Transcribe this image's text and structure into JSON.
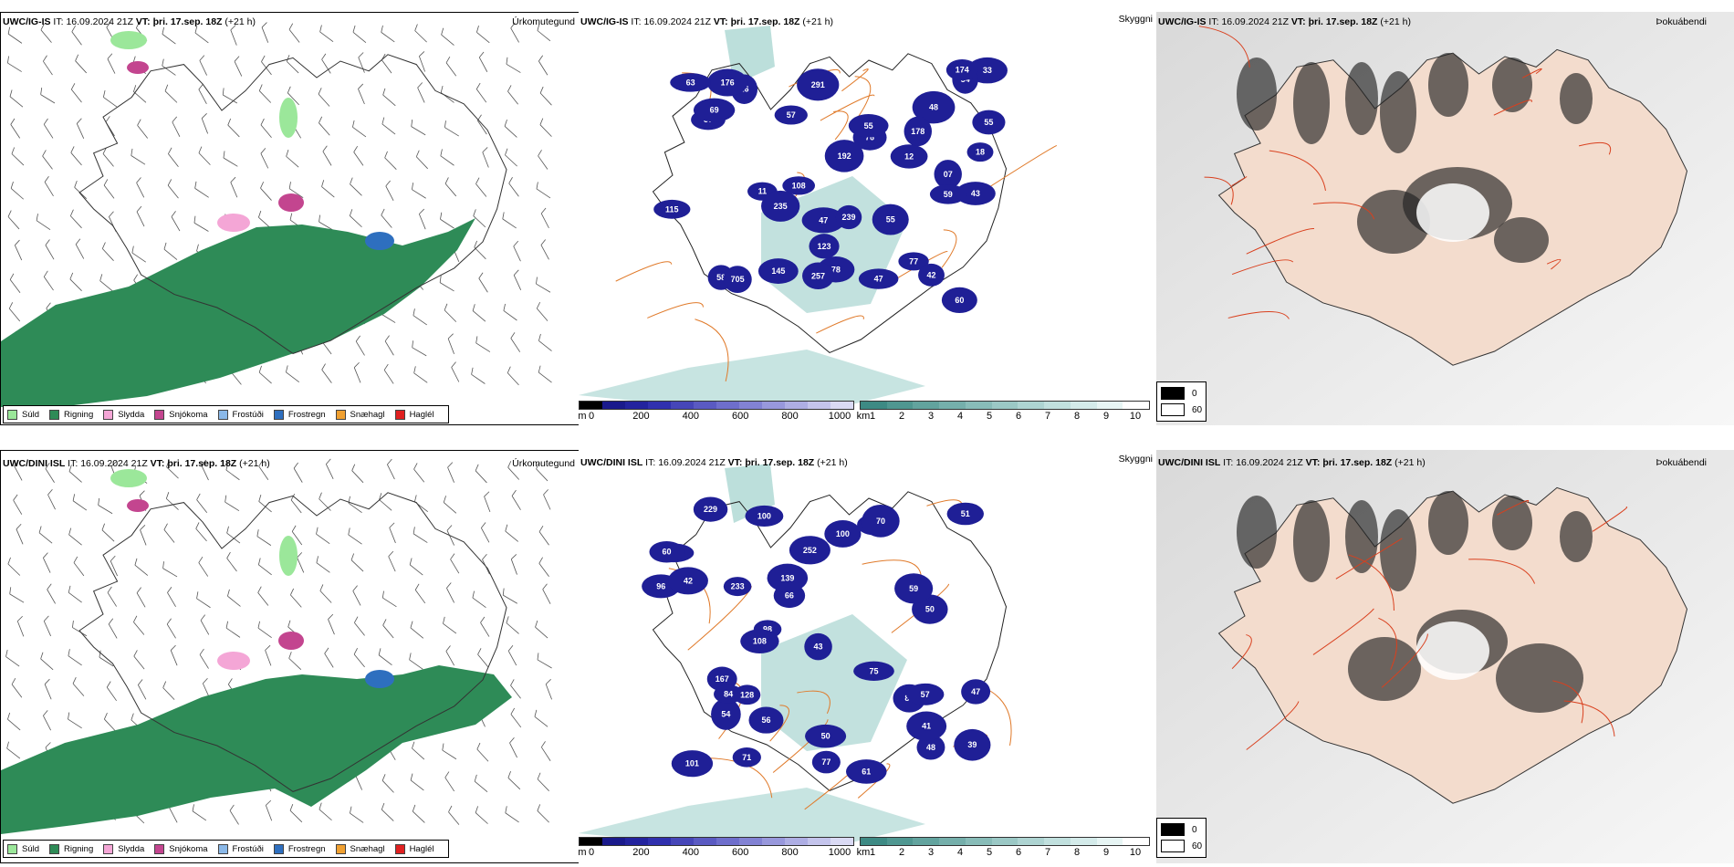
{
  "rows": [
    {
      "model": "UWC/IG-IS",
      "it_label": "IT:",
      "it_value": "16.09.2024 21Z",
      "vt_label": "VT:",
      "vt_value": "þri. 17.sep. 18Z",
      "lead": "(+21 h)",
      "panels": {
        "precip": "Úrkomutegund",
        "visibility": "Skyggni",
        "fog": "Þokuábendi"
      },
      "cloud_labels": [
        "108",
        "33",
        "57",
        "76",
        "11",
        "55",
        "54",
        "16",
        "18",
        "43",
        "47",
        "48",
        "57",
        "55",
        "07",
        "60",
        "78",
        "77",
        "69",
        "47",
        "58",
        "42",
        "12",
        "178",
        "192",
        "291",
        "705",
        "115",
        "123",
        "176",
        "174",
        "257",
        "145",
        "59",
        "63",
        "235",
        "239",
        "55"
      ]
    },
    {
      "model": "UWC/DINI ISL",
      "it_label": "IT:",
      "it_value": "16.09.2024 21Z",
      "vt_label": "VT:",
      "vt_value": "þri. 17.sep. 18Z",
      "lead": "(+21 h)",
      "panels": {
        "precip": "Úrkomutegund",
        "visibility": "Skyggni",
        "fog": "Þokuábendi"
      },
      "cloud_labels": [
        "100",
        "61",
        "75",
        "96",
        "71",
        "54",
        "46",
        "42",
        "48",
        "51",
        "83",
        "167",
        "50",
        "39",
        "47",
        "45",
        "98",
        "57",
        "84",
        "100",
        "66",
        "70",
        "108",
        "139",
        "101",
        "233",
        "252",
        "229",
        "60",
        "128",
        "77",
        "56",
        "43",
        "50",
        "41",
        "59"
      ]
    }
  ],
  "precip_legend": [
    {
      "label": "Súld",
      "color": "#9be79a"
    },
    {
      "label": "Rigning",
      "color": "#2e8b57"
    },
    {
      "label": "Slydda",
      "color": "#f4a6d6"
    },
    {
      "label": "Snjókoma",
      "color": "#c3458f"
    },
    {
      "label": "Frostúði",
      "color": "#8ab8e8"
    },
    {
      "label": "Frostregn",
      "color": "#2e6fbf"
    },
    {
      "label": "Snæhagl",
      "color": "#f0a030"
    },
    {
      "label": "Haglél",
      "color": "#e02020"
    }
  ],
  "cloudbase_bar": {
    "unit": "m",
    "ticks": [
      "0",
      "200",
      "400",
      "600",
      "800",
      "1000"
    ],
    "colors": [
      "#000000",
      "#1a1a8c",
      "#23239e",
      "#3030ae",
      "#4646b8",
      "#5a5ac2",
      "#6e6ecc",
      "#8282d4",
      "#9898dc",
      "#aeaee4",
      "#c4c4ec",
      "#dadaf4"
    ]
  },
  "visibility_bar": {
    "unit": "km",
    "ticks": [
      "1",
      "2",
      "3",
      "4",
      "5",
      "6",
      "7",
      "8",
      "9",
      "10"
    ],
    "colors": [
      "#3d8a84",
      "#4f9791",
      "#62a39e",
      "#75afab",
      "#88bcb8",
      "#9bc8c5",
      "#aed4d2",
      "#c1e0de",
      "#d4ebea",
      "#e7f5f4",
      "#ffffff"
    ]
  },
  "fog_legend": [
    {
      "label": "0",
      "color": "#000000"
    },
    {
      "label": "60",
      "color": "#ffffff"
    }
  ],
  "colors": {
    "rain": "#2e8b57",
    "drizzle": "#9be79a",
    "snow": "#c3458f",
    "sleet": "#f4a6d6",
    "freezing_rain": "#2e6fbf",
    "cloud_low": "#1f1f96",
    "vis_teal": "#8fc9c3",
    "roads": "#e07a2a",
    "land_fog": "#f3dccd"
  }
}
